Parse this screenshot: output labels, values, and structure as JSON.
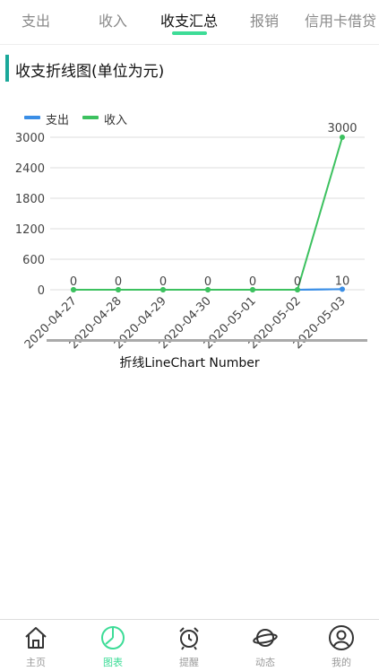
{
  "tabs": [
    {
      "label": "支出"
    },
    {
      "label": "收入"
    },
    {
      "label": "收支汇总"
    },
    {
      "label": "报销"
    },
    {
      "label": "信用卡借贷"
    }
  ],
  "active_tab": "收支汇总",
  "section": {
    "title": "收支折线图(单位为元)"
  },
  "caption": "折线LineChart Number",
  "chart_data": {
    "type": "line",
    "categories": [
      "2020-04-27",
      "2020-04-28",
      "2020-04-29",
      "2020-04-30",
      "2020-05-01",
      "2020-05-02",
      "2020-05-03"
    ],
    "series": [
      {
        "name": "支出",
        "color": "#3a8ee6",
        "values": [
          0,
          0,
          0,
          0,
          0,
          0,
          10
        ]
      },
      {
        "name": "收入",
        "color": "#3cc15f",
        "values": [
          0,
          0,
          0,
          0,
          0,
          0,
          3000
        ]
      }
    ],
    "yticks": [
      0,
      600,
      1200,
      1800,
      2400,
      3000
    ],
    "ylim": [
      0,
      3000
    ],
    "legend": "top-left",
    "grid": true
  },
  "bottom_nav": [
    {
      "label": "主页",
      "icon": "home-icon"
    },
    {
      "label": "图表",
      "icon": "chart-icon"
    },
    {
      "label": "提醒",
      "icon": "alarm-clock-icon"
    },
    {
      "label": "动态",
      "icon": "planet-icon"
    },
    {
      "label": "我的",
      "icon": "user-icon"
    }
  ],
  "colors": {
    "accent": "#3ddc97",
    "section_bar": "#1aa89a"
  }
}
